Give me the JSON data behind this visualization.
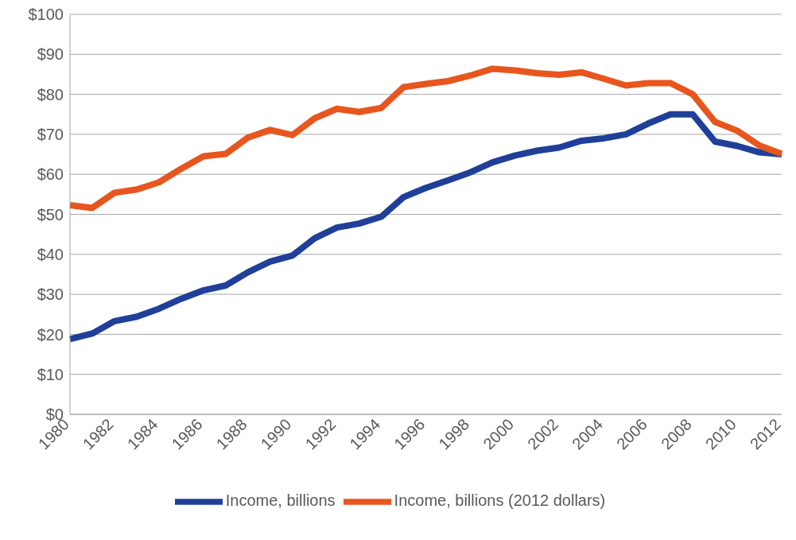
{
  "chart_data": {
    "type": "line",
    "categories": [
      "1980",
      null,
      "1982",
      null,
      "1984",
      null,
      "1986",
      null,
      "1988",
      null,
      "1990",
      null,
      "1992",
      null,
      "1994",
      null,
      "1996",
      null,
      "1998",
      null,
      "2000",
      null,
      "2002",
      null,
      "2004",
      null,
      "2006",
      null,
      "2008",
      null,
      "2010",
      null,
      "2012"
    ],
    "series": [
      {
        "name": "Income, billions",
        "color": "#1f3f99",
        "values": [
          18.8,
          20.2,
          23.3,
          24.4,
          26.4,
          28.9,
          31.0,
          32.2,
          35.5,
          38.2,
          39.7,
          44.0,
          46.7,
          47.7,
          49.4,
          54.3,
          56.6,
          58.5,
          60.5,
          63.0,
          64.7,
          65.9,
          66.7,
          68.4,
          69.0,
          70.0,
          72.7,
          75.0,
          75.0,
          68.2,
          67.1,
          65.5,
          65.0
        ]
      },
      {
        "name": "Income, billions (2012 dollars)",
        "color": "#e8561e",
        "values": [
          52.3,
          51.6,
          55.4,
          56.2,
          58.0,
          61.4,
          64.5,
          65.1,
          69.2,
          71.1,
          69.8,
          74.0,
          76.4,
          75.6,
          76.6,
          81.8,
          82.6,
          83.3,
          84.7,
          86.4,
          86.0,
          85.3,
          84.9,
          85.5,
          83.9,
          82.2,
          82.8,
          82.8,
          80.0,
          73.1,
          70.9,
          67.2,
          65.1
        ]
      }
    ],
    "ylim": [
      0,
      100
    ],
    "yticks": [
      {
        "value": 0,
        "label": "$0"
      },
      {
        "value": 10,
        "label": "$10"
      },
      {
        "value": 20,
        "label": "$20"
      },
      {
        "value": 30,
        "label": "$30"
      },
      {
        "value": 40,
        "label": "$40"
      },
      {
        "value": 50,
        "label": "$50"
      },
      {
        "value": 60,
        "label": "$60"
      },
      {
        "value": 70,
        "label": "$70"
      },
      {
        "value": 80,
        "label": "$80"
      },
      {
        "value": 90,
        "label": "$90"
      },
      {
        "value": 100,
        "label": "$100"
      }
    ],
    "grid": "y",
    "legend": "bottom",
    "marker": "none",
    "line_style": "solid"
  }
}
